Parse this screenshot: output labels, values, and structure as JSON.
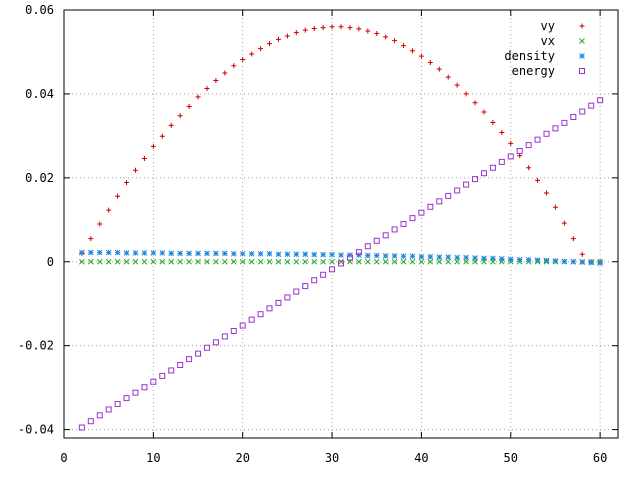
{
  "chart_data": {
    "type": "scatter",
    "title": "",
    "xlabel": "",
    "ylabel": "",
    "xlim": [
      0,
      62
    ],
    "ylim": [
      -0.042,
      0.06
    ],
    "grid": true,
    "legend_position": "top-right",
    "x_ticks": [
      {
        "value": 0,
        "label": "0"
      },
      {
        "value": 10,
        "label": "10"
      },
      {
        "value": 20,
        "label": "20"
      },
      {
        "value": 30,
        "label": "30"
      },
      {
        "value": 40,
        "label": "40"
      },
      {
        "value": 50,
        "label": "50"
      },
      {
        "value": 60,
        "label": "60"
      }
    ],
    "y_ticks": [
      {
        "value": -0.04,
        "label": "-0.04"
      },
      {
        "value": -0.02,
        "label": "-0.02"
      },
      {
        "value": 0,
        "label": "0"
      },
      {
        "value": 0.02,
        "label": "0.02"
      },
      {
        "value": 0.04,
        "label": "0.04"
      },
      {
        "value": 0.06,
        "label": "0.06"
      }
    ],
    "x": [
      2,
      3,
      4,
      5,
      6,
      7,
      8,
      9,
      10,
      11,
      12,
      13,
      14,
      15,
      16,
      17,
      18,
      19,
      20,
      21,
      22,
      23,
      24,
      25,
      26,
      27,
      28,
      29,
      30,
      31,
      32,
      33,
      34,
      35,
      36,
      37,
      38,
      39,
      40,
      41,
      42,
      43,
      44,
      45,
      46,
      47,
      48,
      49,
      50,
      51,
      52,
      53,
      54,
      55,
      56,
      57,
      58,
      59,
      60
    ],
    "series": [
      {
        "name": "vy",
        "marker": "plus",
        "color": "#cc0000",
        "values": [
          0.002,
          0.0055,
          0.009,
          0.0123,
          0.0156,
          0.0189,
          0.0218,
          0.0246,
          0.0275,
          0.0299,
          0.0325,
          0.0348,
          0.037,
          0.0393,
          0.0413,
          0.0432,
          0.045,
          0.0467,
          0.0482,
          0.0495,
          0.0508,
          0.052,
          0.053,
          0.0538,
          0.0546,
          0.0552,
          0.0556,
          0.0558,
          0.056,
          0.056,
          0.0558,
          0.0555,
          0.055,
          0.0544,
          0.0536,
          0.0527,
          0.0515,
          0.0503,
          0.049,
          0.0475,
          0.0459,
          0.044,
          0.0421,
          0.04,
          0.0379,
          0.0357,
          0.0332,
          0.0308,
          0.0282,
          0.0253,
          0.0224,
          0.0194,
          0.0164,
          0.013,
          0.0092,
          0.0055,
          0.0018,
          0.0,
          0.0
        ]
      },
      {
        "name": "vx",
        "marker": "cross",
        "color": "#22aa22",
        "values": [
          0.0,
          0.0,
          0.0,
          0.0,
          0.0,
          0.0,
          0.0,
          0.0,
          0.0,
          0.0,
          0.0,
          0.0,
          0.0,
          0.0,
          0.0,
          0.0,
          0.0,
          0.0,
          0.0,
          0.0,
          0.0,
          0.0,
          0.0,
          0.0,
          0.0,
          0.0,
          0.0,
          0.0,
          0.0,
          0.0,
          0.0,
          0.0,
          0.0,
          0.0,
          0.0,
          0.0,
          0.0,
          0.0,
          0.0,
          0.0,
          0.0,
          0.0,
          0.0,
          0.0,
          0.0,
          0.0,
          0.0,
          0.0,
          0.0,
          0.0,
          0.0,
          0.0,
          0.0,
          0.0,
          0.0,
          0.0,
          0.0,
          0.0,
          0.0
        ]
      },
      {
        "name": "density",
        "marker": "star",
        "color": "#2288dd",
        "values": [
          0.0022,
          0.0022,
          0.0022,
          0.0022,
          0.0022,
          0.0021,
          0.0021,
          0.0021,
          0.0021,
          0.0021,
          0.002,
          0.002,
          0.002,
          0.002,
          0.002,
          0.002,
          0.002,
          0.0019,
          0.0019,
          0.0019,
          0.0019,
          0.0019,
          0.0018,
          0.0018,
          0.0018,
          0.0018,
          0.0017,
          0.0017,
          0.0017,
          0.0016,
          0.0016,
          0.0016,
          0.0015,
          0.0015,
          0.0014,
          0.0014,
          0.0013,
          0.0013,
          0.0012,
          0.0012,
          0.0011,
          0.0011,
          0.001,
          0.001,
          0.0009,
          0.0008,
          0.0008,
          0.0007,
          0.0006,
          0.0005,
          0.0005,
          0.0004,
          0.0003,
          0.0002,
          0.0001,
          0.0,
          -0.0001,
          -0.0002,
          -0.0003
        ]
      },
      {
        "name": "energy",
        "marker": "square",
        "color": "#9933cc",
        "values": [
          -0.0395,
          -0.038,
          -0.0366,
          -0.0352,
          -0.0339,
          -0.0325,
          -0.0312,
          -0.0299,
          -0.0286,
          -0.0272,
          -0.0259,
          -0.0246,
          -0.0232,
          -0.0219,
          -0.0205,
          -0.0192,
          -0.0178,
          -0.0165,
          -0.0152,
          -0.0138,
          -0.0125,
          -0.0111,
          -0.0098,
          -0.0085,
          -0.0071,
          -0.0058,
          -0.0044,
          -0.0031,
          -0.0018,
          -0.0004,
          0.001,
          0.0023,
          0.0037,
          0.005,
          0.0063,
          0.0077,
          0.009,
          0.0104,
          0.0117,
          0.0131,
          0.0144,
          0.0157,
          0.017,
          0.0184,
          0.0197,
          0.0211,
          0.0224,
          0.0238,
          0.0251,
          0.0264,
          0.0278,
          0.0291,
          0.0305,
          0.0318,
          0.0331,
          0.0345,
          0.0358,
          0.0372,
          0.0385
        ]
      }
    ]
  }
}
